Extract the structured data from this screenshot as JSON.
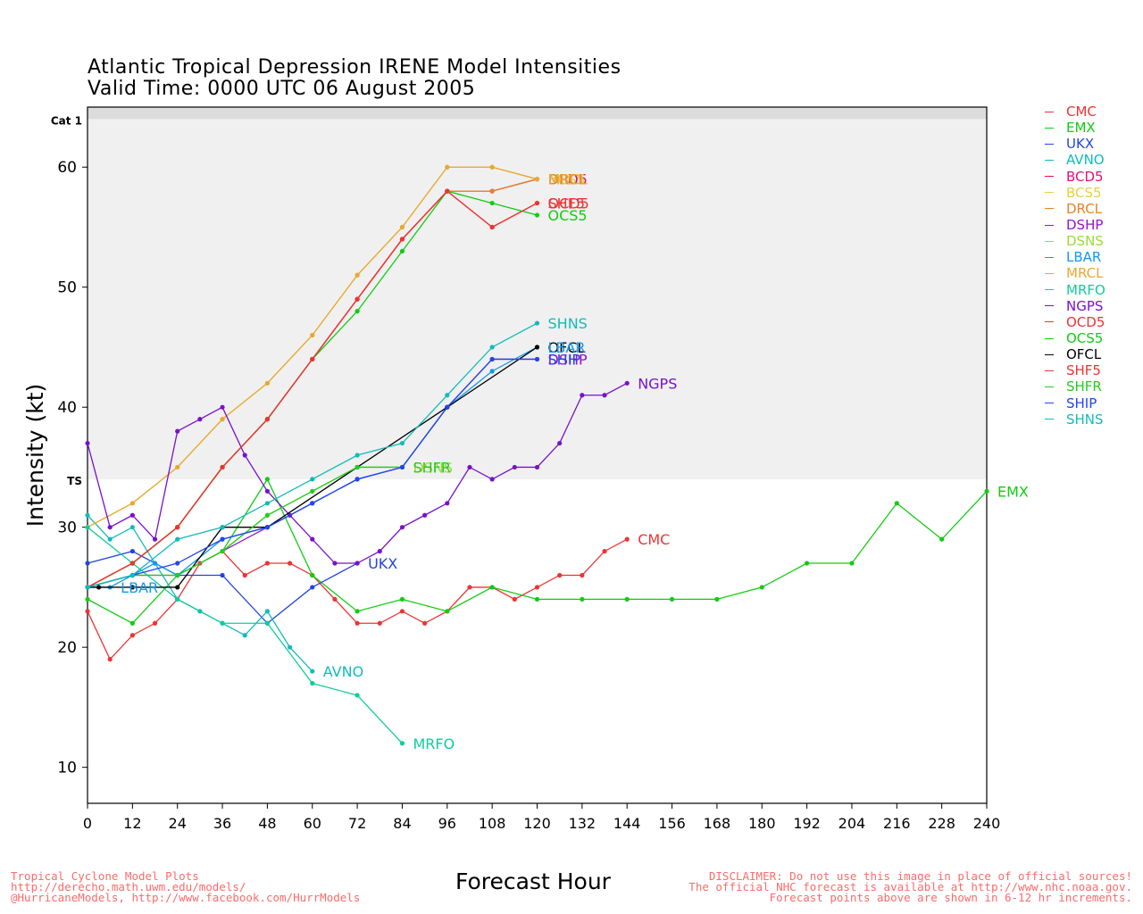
{
  "title_line1": "Atlantic Tropical Depression IRENE Model Intensities",
  "title_line2": "Valid Time: 0000 UTC 06 August 2005",
  "footer_left": [
    "Tropical Cyclone Model Plots",
    "http://derecho.math.uwm.edu/models/",
    "@HurricaneModels, http://www.facebook.com/HurrModels"
  ],
  "footer_right": [
    "DISCLAIMER: Do not use this image in place of official sources!",
    "The official NHC forecast is available at http://www.nhc.noaa.gov.",
    "Forecast points above are shown in 6-12 hr increments."
  ],
  "colors": {
    "CMC": "#ee3333",
    "EMX": "#11cc11",
    "UKX": "#2244dd",
    "AVNO": "#11bbbb",
    "BCD5": "#dd1177",
    "BCS5": "#e8d040",
    "DRCL": "#e8802a",
    "DSHP": "#9911cc",
    "DSNS": "#99dd33",
    "LBAR": "#1199ee",
    "MRCL": "#e8a833",
    "MRFO": "#11cc99",
    "NGPS": "#7711cc",
    "OCD5": "#ee3333",
    "OCS5": "#11cc11",
    "OFCL": "#000000",
    "SHF5": "#ee3333",
    "SHFR": "#22cc22",
    "SHIP": "#2244ee",
    "SHNS": "#11bbbb"
  },
  "chart_data": {
    "type": "line",
    "xlabel": "Forecast Hour",
    "ylabel": "Intensity (kt)",
    "xlim": [
      0,
      240
    ],
    "ylim": [
      7,
      65
    ],
    "xticks": [
      0,
      12,
      24,
      36,
      48,
      60,
      72,
      84,
      96,
      108,
      120,
      132,
      144,
      156,
      168,
      180,
      192,
      204,
      216,
      228,
      240
    ],
    "yticks": [
      10,
      20,
      30,
      40,
      50,
      60
    ],
    "bands": [
      {
        "label": "TS",
        "from": 34,
        "to": 64
      },
      {
        "label": "Cat 1",
        "from": 64,
        "to": 65
      }
    ],
    "legend": [
      "CMC",
      "EMX",
      "UKX",
      "AVNO",
      "BCD5",
      "BCS5",
      "DRCL",
      "DSHP",
      "DSNS",
      "LBAR",
      "MRCL",
      "MRFO",
      "NGPS",
      "OCD5",
      "OCS5",
      "OFCL",
      "SHF5",
      "SHFR",
      "SHIP",
      "SHNS"
    ],
    "series": [
      {
        "name": "CMC",
        "x": [
          0,
          6,
          12,
          18,
          24,
          30,
          36,
          42,
          48,
          54,
          60,
          66,
          72,
          78,
          84,
          90,
          96,
          102,
          108,
          114,
          120,
          126,
          132,
          138,
          144
        ],
        "y": [
          23,
          19,
          21,
          22,
          24,
          27,
          28,
          26,
          27,
          27,
          26,
          24,
          22,
          22,
          23,
          22,
          23,
          25,
          25,
          24,
          25,
          26,
          26,
          28,
          29
        ]
      },
      {
        "name": "EMX",
        "x": [
          0,
          12,
          24,
          36,
          48,
          60,
          72,
          84,
          96,
          108,
          120,
          132,
          144,
          156,
          168,
          180,
          192,
          204,
          216,
          228,
          240
        ],
        "y": [
          24,
          22,
          26,
          28,
          34,
          26,
          23,
          24,
          23,
          25,
          24,
          24,
          24,
          24,
          24,
          25,
          27,
          27,
          32,
          29,
          33
        ]
      },
      {
        "name": "UKX",
        "x": [
          0,
          12,
          24,
          36,
          48,
          60,
          72
        ],
        "y": [
          27,
          28,
          26,
          26,
          22,
          25,
          27
        ]
      },
      {
        "name": "AVNO",
        "x": [
          0,
          6,
          12,
          18,
          24,
          30,
          36,
          42,
          48,
          54,
          60
        ],
        "y": [
          31,
          29,
          30,
          27,
          24,
          23,
          22,
          21,
          23,
          20,
          18
        ]
      },
      {
        "name": "BCD5",
        "x": [
          0,
          12,
          24,
          36,
          48,
          60,
          72,
          84,
          96,
          108,
          120
        ],
        "y": [
          25,
          27,
          30,
          35,
          39,
          44,
          49,
          54,
          58,
          58,
          59
        ]
      },
      {
        "name": "BCS5",
        "x": [
          0,
          12,
          24,
          36,
          48,
          60,
          72,
          84,
          96,
          108,
          120
        ],
        "y": [
          30,
          32,
          35,
          39,
          42,
          46,
          51,
          55,
          60,
          60,
          59
        ]
      },
      {
        "name": "DRCL",
        "x": [
          0,
          12,
          24,
          36,
          48,
          60,
          72,
          84,
          96,
          108,
          120
        ],
        "y": [
          25,
          27,
          30,
          35,
          39,
          44,
          49,
          54,
          58,
          58,
          59
        ]
      },
      {
        "name": "DSHP",
        "x": [
          0,
          12,
          24,
          36,
          48,
          60,
          72,
          84,
          96,
          108,
          120
        ],
        "y": [
          25,
          26,
          26,
          28,
          30,
          32,
          34,
          35,
          40,
          44,
          44
        ]
      },
      {
        "name": "DSNS",
        "x": [
          0,
          12,
          24,
          36,
          48,
          60,
          72,
          84
        ],
        "y": [
          25,
          26,
          26,
          28,
          31,
          33,
          35,
          35
        ]
      },
      {
        "name": "LBAR",
        "x": [
          0,
          6,
          12,
          18,
          24,
          36,
          48,
          60,
          72,
          84,
          96,
          108,
          120
        ],
        "y": [
          25,
          25,
          26,
          27,
          26,
          29,
          30,
          32,
          34,
          35,
          40,
          43,
          45
        ]
      },
      {
        "name": "MRCL",
        "x": [
          0,
          12,
          24,
          36,
          48,
          60,
          72,
          84,
          96,
          108,
          120
        ],
        "y": [
          30,
          32,
          35,
          39,
          42,
          46,
          51,
          55,
          60,
          60,
          59
        ]
      },
      {
        "name": "MRFO",
        "x": [
          0,
          12,
          24,
          36,
          48,
          60,
          72,
          84
        ],
        "y": [
          30,
          27,
          24,
          22,
          22,
          17,
          16,
          12
        ]
      },
      {
        "name": "NGPS",
        "x": [
          0,
          6,
          12,
          18,
          24,
          30,
          36,
          42,
          48,
          54,
          60,
          66,
          72,
          78,
          84,
          90,
          96,
          102,
          108,
          114,
          120,
          126,
          132,
          138,
          144
        ],
        "y": [
          37,
          30,
          31,
          29,
          38,
          39,
          40,
          36,
          33,
          31,
          29,
          27,
          27,
          28,
          30,
          31,
          32,
          35,
          34,
          35,
          35,
          37,
          41,
          41,
          42
        ]
      },
      {
        "name": "OCD5",
        "x": [
          0,
          12,
          24,
          36,
          48,
          60,
          72,
          84,
          96,
          108,
          120
        ],
        "y": [
          25,
          27,
          30,
          35,
          39,
          44,
          49,
          54,
          58,
          55,
          57
        ]
      },
      {
        "name": "OCS5",
        "x": [
          0,
          12,
          24,
          36,
          48,
          60,
          72,
          84,
          96,
          108,
          120
        ],
        "y": [
          25,
          27,
          30,
          35,
          39,
          44,
          48,
          53,
          58,
          57,
          56
        ]
      },
      {
        "name": "OFCL",
        "x": [
          0,
          3,
          12,
          24,
          36,
          48,
          72,
          96,
          120
        ],
        "y": [
          25,
          25,
          25,
          25,
          30,
          30,
          35,
          40,
          45
        ]
      },
      {
        "name": "SHF5",
        "x": [
          0,
          12,
          24,
          36,
          48,
          60,
          72,
          84,
          96,
          108,
          120
        ],
        "y": [
          25,
          27,
          30,
          35,
          39,
          44,
          49,
          54,
          58,
          55,
          57
        ]
      },
      {
        "name": "SHFR",
        "x": [
          0,
          12,
          24,
          36,
          48,
          60,
          72,
          84
        ],
        "y": [
          25,
          26,
          26,
          28,
          31,
          33,
          35,
          35
        ]
      },
      {
        "name": "SHIP",
        "x": [
          0,
          12,
          24,
          36,
          48,
          60,
          72,
          84,
          96,
          108,
          120
        ],
        "y": [
          25,
          26,
          27,
          29,
          30,
          32,
          34,
          35,
          40,
          44,
          44
        ]
      },
      {
        "name": "SHNS",
        "x": [
          0,
          12,
          24,
          36,
          48,
          60,
          72,
          84,
          96,
          108,
          120
        ],
        "y": [
          25,
          26,
          29,
          30,
          32,
          34,
          36,
          37,
          41,
          45,
          47
        ]
      }
    ],
    "end_labels": [
      {
        "text": "BCD5",
        "series": "BCD5"
      },
      {
        "text": "BCS5",
        "series": "BCS5"
      },
      {
        "text": "DRCL",
        "series": "DRCL"
      },
      {
        "text": "MRCL",
        "series": "MRCL"
      },
      {
        "text": "SHF5",
        "series": "SHF5"
      },
      {
        "text": "OCD5",
        "series": "OCD5"
      },
      {
        "text": "OCS5",
        "series": "OCS5"
      },
      {
        "text": "SHNS",
        "series": "SHNS"
      },
      {
        "text": "OFCL",
        "series": "OFCL"
      },
      {
        "text": "LBAR",
        "series": "LBAR"
      },
      {
        "text": "DSHP",
        "series": "DSHP"
      },
      {
        "text": "SHIP",
        "series": "SHIP"
      },
      {
        "text": "NGPS",
        "series": "NGPS"
      },
      {
        "text": "EMX",
        "series": "EMX"
      },
      {
        "text": "CMC",
        "series": "CMC"
      },
      {
        "text": "UKX",
        "series": "UKX"
      },
      {
        "text": "AVNO",
        "series": "AVNO"
      },
      {
        "text": "MRFO",
        "series": "MRFO"
      },
      {
        "text": "DSNS",
        "series": "DSNS"
      },
      {
        "text": "SHFR",
        "series": "SHFR"
      },
      {
        "text": "LBAR",
        "series": "LBAR",
        "at_start": true
      }
    ]
  }
}
